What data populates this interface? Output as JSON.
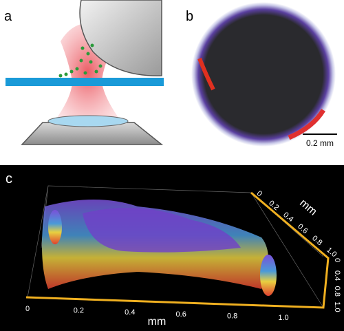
{
  "panels": [
    {
      "label": "a"
    },
    {
      "label": "b",
      "scale_bar": "0.2 mm"
    },
    {
      "label": "c",
      "x_axis": {
        "label": "mm",
        "ticks": [
          "0",
          "0.2",
          "0.4",
          "0.6",
          "0.8",
          "1.0"
        ]
      },
      "y_axis": {
        "label": "mm",
        "ticks": [
          "0",
          "0.2",
          "0.4",
          "0.6",
          "0.8",
          "1.0"
        ]
      },
      "z_axis": {
        "ticks": [
          "0",
          "0.4",
          "0.8",
          "1.0"
        ]
      }
    }
  ]
}
